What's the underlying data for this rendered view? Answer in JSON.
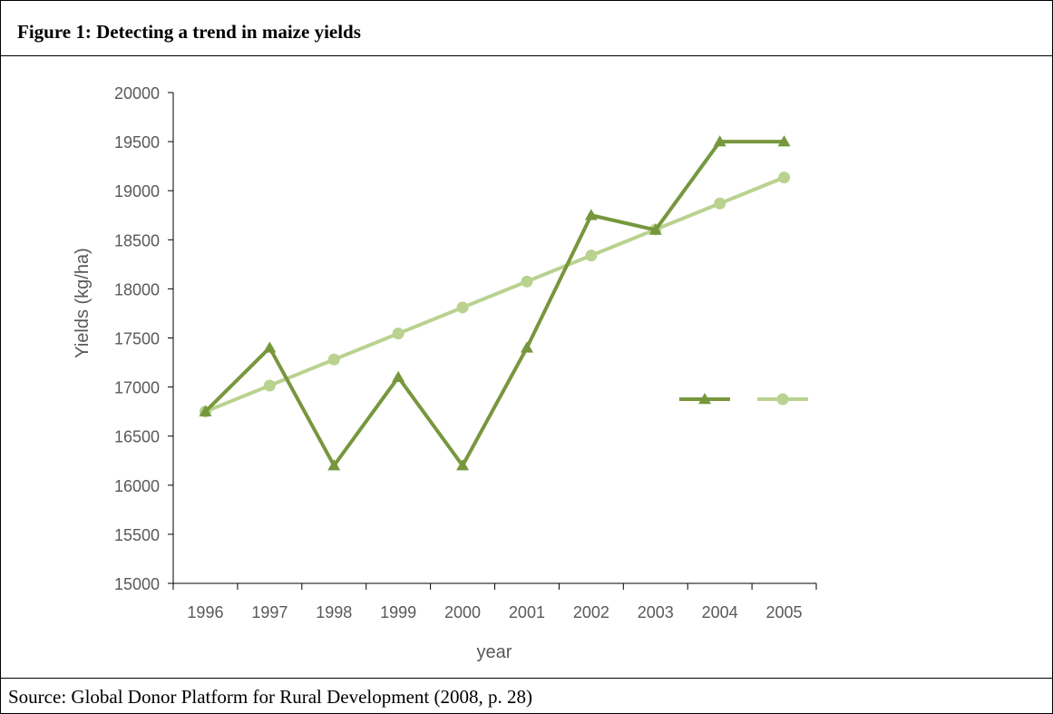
{
  "figure": {
    "title": "Figure 1: Detecting a trend in maize yields",
    "source": "Source: Global Donor Platform for Rural Development (2008, p. 28)"
  },
  "chart_data": {
    "type": "line",
    "title": "",
    "xlabel": "year",
    "ylabel": "Yields (kg/ha)",
    "categories": [
      "1996",
      "1997",
      "1998",
      "1999",
      "2000",
      "2001",
      "2002",
      "2003",
      "2004",
      "2005"
    ],
    "ylim": [
      15000,
      20000
    ],
    "yticks": [
      15000,
      15500,
      16000,
      16500,
      17000,
      17500,
      18000,
      18500,
      19000,
      19500,
      20000
    ],
    "grid": false,
    "legend_position": "right",
    "series": [
      {
        "values": [
          16750,
          17400,
          16200,
          17100,
          16200,
          17400,
          18750,
          18600,
          19500,
          19500
        ],
        "marker": "triangle",
        "color": "#77973d"
      },
      {
        "values": [
          16750,
          17015,
          17280,
          17545,
          17810,
          18075,
          18340,
          18605,
          18870,
          19135
        ],
        "marker": "circle",
        "color": "#b9d28f"
      }
    ]
  }
}
